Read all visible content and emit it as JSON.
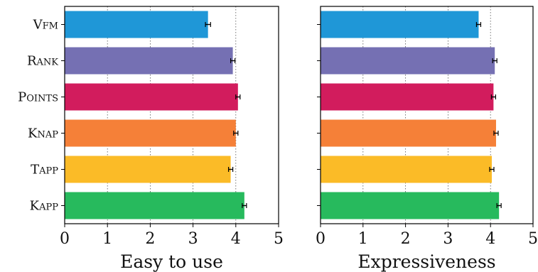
{
  "chart_data": [
    {
      "type": "bar",
      "orientation": "horizontal",
      "xlabel": "Easy to use",
      "categories": [
        "Vfm",
        "Rank",
        "Points",
        "Knap",
        "Tapp",
        "Kapp"
      ],
      "values": [
        3.35,
        3.93,
        4.05,
        4.0,
        3.88,
        4.2
      ],
      "errors": [
        0.06,
        0.05,
        0.05,
        0.05,
        0.05,
        0.05
      ],
      "colors": [
        "#1f97d7",
        "#7570b3",
        "#d21c5d",
        "#f58038",
        "#fbbb27",
        "#27ba5d"
      ],
      "xlim": [
        0,
        5
      ],
      "xticks": [
        "0",
        "1",
        "2",
        "3",
        "4",
        "5"
      ],
      "grid": "vertical dotted"
    },
    {
      "type": "bar",
      "orientation": "horizontal",
      "xlabel": "Expressiveness",
      "categories": [
        "Vfm",
        "Rank",
        "Points",
        "Knap",
        "Tapp",
        "Kapp"
      ],
      "values": [
        3.72,
        4.1,
        4.07,
        4.13,
        4.03,
        4.2
      ],
      "errors": [
        0.05,
        0.05,
        0.05,
        0.05,
        0.05,
        0.05
      ],
      "colors": [
        "#1f97d7",
        "#7570b3",
        "#d21c5d",
        "#f58038",
        "#fbbb27",
        "#27ba5d"
      ],
      "xlim": [
        0,
        5
      ],
      "xticks": [
        "0",
        "1",
        "2",
        "3",
        "4",
        "5"
      ],
      "grid": "vertical dotted"
    }
  ]
}
